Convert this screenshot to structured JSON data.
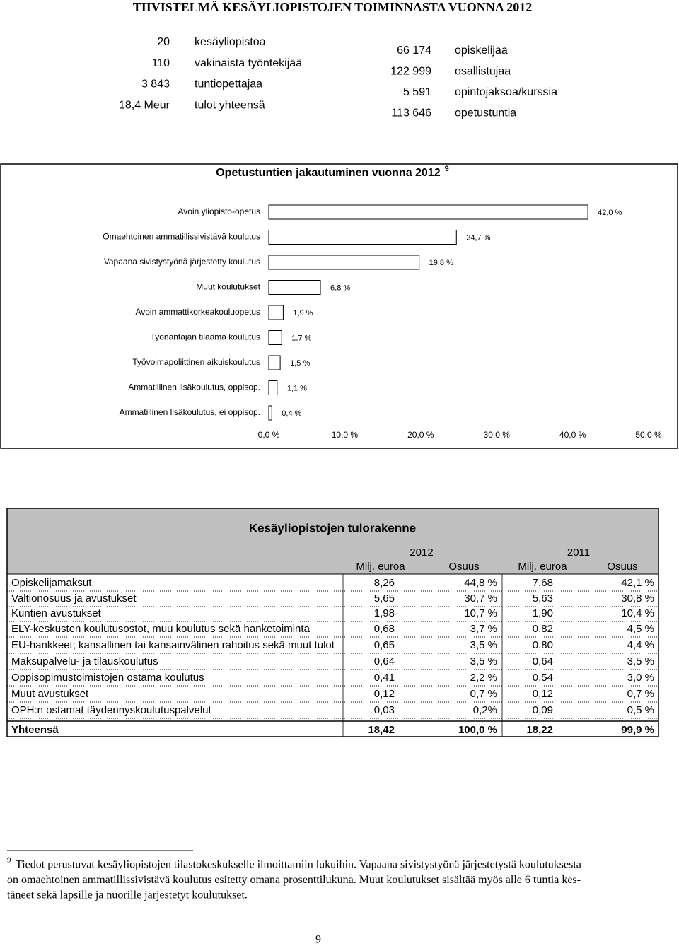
{
  "title": "TIIVISTELMÄ KESÄYLIOPISTOJEN TOIMINNASTA VUONNA 2012",
  "stats_left": [
    [
      "20",
      "kesäyliopistoa"
    ],
    [
      "110",
      "vakinaista työntekijää"
    ],
    [
      "3 843",
      "tuntiopettajaa"
    ],
    [
      "18,4 Meur",
      "tulot yhteensä"
    ]
  ],
  "stats_right": [
    [
      "66 174",
      "opiskelijaa"
    ],
    [
      "122 999",
      "osallistujaa"
    ],
    [
      "5 591",
      "opintojaksoa/kurssia"
    ],
    [
      "113 646",
      "opetustuntia"
    ]
  ],
  "chart_data": {
    "type": "bar",
    "orientation": "horizontal",
    "title": "Opetustuntien jakautuminen vuonna 2012",
    "title_note": "9",
    "categories": [
      "Avoin yliopisto-opetus",
      "Omaehtoinen ammatillissivistävä koulutus",
      "Vapaana sivistystyönä järjestetty koulutus",
      "Muut koulutukset",
      "Avoin ammattikorkeakouluopetus",
      "Työnantajan tilaama koulutus",
      "Työvoimapoliittinen aikuiskoulutus",
      "Ammatillinen lisäkoulutus, oppisop.",
      "Ammatillinen lisäkoulutus, ei oppisop."
    ],
    "values": [
      42.0,
      24.7,
      19.8,
      6.8,
      1.9,
      1.7,
      1.5,
      1.1,
      0.4
    ],
    "value_labels": [
      "42,0 %",
      "24,7 %",
      "19,8 %",
      "6,8 %",
      "1,9 %",
      "1,7 %",
      "1,5 %",
      "1,1 %",
      "0,4 %"
    ],
    "color": "#ffffff",
    "xlim": [
      0,
      50
    ],
    "xticks": [
      {
        "value": 0,
        "label": "0,0 %"
      },
      {
        "value": 10,
        "label": "10,0 %"
      },
      {
        "value": 20,
        "label": "20,0 %"
      },
      {
        "value": 30,
        "label": "30,0 %"
      },
      {
        "value": 40,
        "label": "40,0 %"
      },
      {
        "value": 50,
        "label": "50,0 %"
      }
    ]
  },
  "table": {
    "title": "Kesäyliopistojen tulorakenne",
    "years": [
      "2012",
      "2011"
    ],
    "columns": [
      "Milj. euroa",
      "Osuus",
      "Milj. euroa",
      "Osuus"
    ],
    "rows": [
      [
        "Opiskelijamaksut",
        "8,26",
        "44,8 %",
        "7,68",
        "42,1 %"
      ],
      [
        "Valtionosuus ja avustukset",
        "5,65",
        "30,7 %",
        "5,63",
        "30,8 %"
      ],
      [
        "Kuntien avustukset",
        "1,98",
        "10,7 %",
        "1,90",
        "10,4 %"
      ],
      [
        "ELY-keskusten koulutusostot, muu koulutus sekä hanketoiminta",
        "0,68",
        "3,7 %",
        "0,82",
        "4,5 %"
      ],
      [
        "EU-hankkeet; kansallinen tai kansainvälinen rahoitus sekä muut tulot",
        "0,65",
        "3,5 %",
        "0,80",
        "4,4 %"
      ],
      [
        "Maksupalvelu- ja tilauskoulutus",
        "0,64",
        "3,5 %",
        "0,64",
        "3,5 %"
      ],
      [
        "Oppisopimustoimistojen ostama koulutus",
        "0,41",
        "2,2 %",
        "0,54",
        "3,0 %"
      ],
      [
        "Muut avustukset",
        "0,12",
        "0,7 %",
        "0,12",
        "0,7 %"
      ],
      [
        "OPH:n ostamat täydennyskoulutuspalvelut",
        "0,03",
        "0,2%",
        "0,09",
        "0,5 %"
      ]
    ],
    "total": [
      "Yhteensä",
      "18,42",
      "100,0 %",
      "18,22",
      "99,9 %"
    ]
  },
  "footnote": {
    "mark": "9",
    "lines": [
      "Tiedot perustuvat kesäyliopistojen tilastokeskukselle ilmoittamiin lukuihin. Vapaana sivistystyönä järjestetystä koulutuksesta",
      "on omaehtoinen ammatillissivistävä koulutus esitetty omana prosenttilukuna. Muut koulutukset sisältää myös alle 6 tuntia kes-",
      "täneet sekä lapsille ja nuorille järjestetyt koulutukset."
    ]
  },
  "page_number": "9"
}
